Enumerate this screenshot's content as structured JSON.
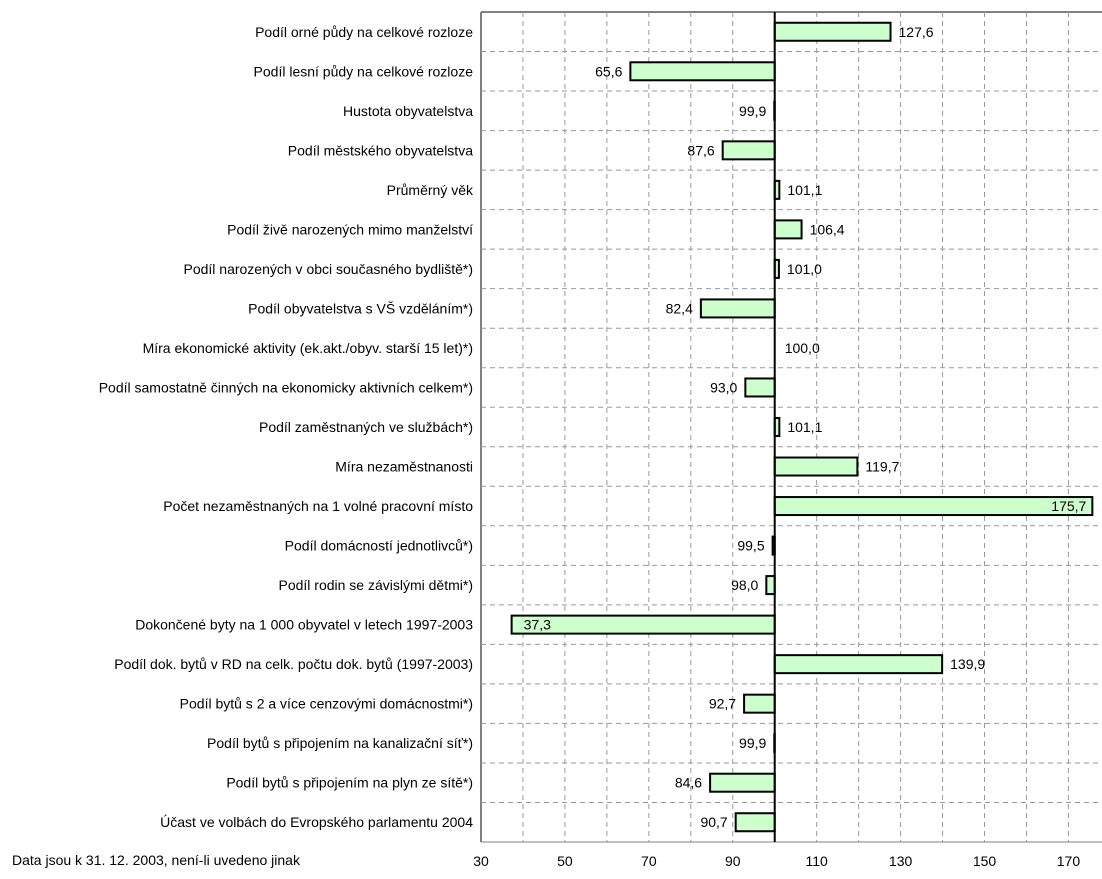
{
  "chart_data": {
    "type": "bar",
    "orientation": "horizontal",
    "baseline": 100,
    "categories": [
      "Podíl orné půdy na celkové rozloze",
      "Podíl lesní půdy na celkové rozloze",
      "Hustota obyvatelstva",
      "Podíl městského obyvatelstva",
      "Průměrný věk",
      "Podíl živě narozených mimo manželství",
      "Podíl narozených v obci současného bydliště*)",
      "Podíl obyvatelstva s VŠ vzděláním*)",
      "Míra ekonomické aktivity (ek.akt./obyv. starší 15 let)*)",
      "Podíl samostatně činných na ekonomicky aktivních celkem*)",
      "Podíl zaměstnaných ve službách*)",
      "Míra nezaměstnanosti",
      "Počet nezaměstnaných na 1 volné pracovní místo",
      "Podíl domácností jednotlivců*)",
      "Podíl rodin se závislými dětmi*)",
      "Dokončené byty na 1 000 obyvatel v letech 1997-2003",
      "Podíl dok. bytů v RD na celk. počtu dok. bytů (1997-2003)",
      "Podíl bytů s 2 a více cenzovými domácnostmi*)",
      "Podíl bytů s připojením na kanalizační síť*)",
      "Podíl bytů s připojením na plyn ze sítě*)",
      "Účast ve volbách do Evropského parlamentu 2004"
    ],
    "values": [
      127.6,
      65.6,
      99.9,
      87.6,
      101.1,
      106.4,
      101.0,
      82.4,
      100.0,
      93.0,
      101.1,
      119.7,
      175.7,
      99.5,
      98.0,
      37.3,
      139.9,
      92.7,
      99.9,
      84.6,
      90.7
    ],
    "value_labels": [
      "127,6",
      "65,6",
      "99,9",
      "87,6",
      "101,1",
      "106,4",
      "101,0",
      "82,4",
      "100,0",
      "93,0",
      "101,1",
      "119,7",
      "175,7",
      "99,5",
      "98,0",
      "37,3",
      "139,9",
      "92,7",
      "99,9",
      "84,6",
      "90,7"
    ],
    "xlim": [
      30,
      178
    ],
    "xticks": [
      30,
      50,
      70,
      90,
      110,
      130,
      150,
      170
    ],
    "grid": true,
    "legend": false,
    "title": "",
    "xlabel": "",
    "ylabel": "",
    "note": "Data jsou k 31. 12. 2003, není-li uvedeno jinak",
    "colors": {
      "bar_fill": "#ccffcc",
      "bar_stroke": "#000000",
      "grid": "#999999",
      "frame": "#808080"
    }
  }
}
